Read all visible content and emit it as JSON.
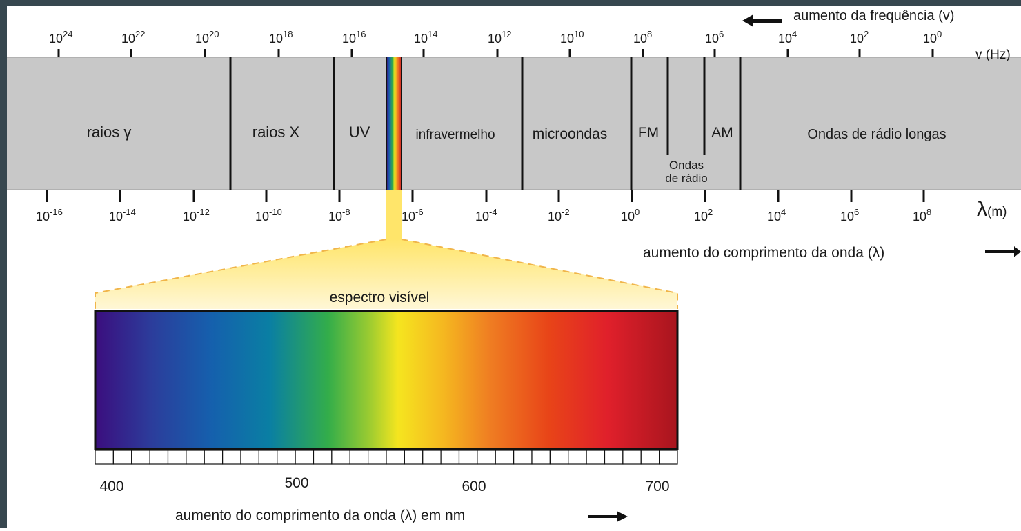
{
  "frequency_axis": {
    "direction_label": "aumento da frequência (v)",
    "unit_label": "v (Hz)",
    "base": "10",
    "exponents": [
      "24",
      "22",
      "20",
      "18",
      "16",
      "14",
      "12",
      "10",
      "8",
      "6",
      "4",
      "2",
      "0"
    ]
  },
  "wavelength_axis": {
    "direction_label": "aumento do comprimento da onda (λ)",
    "unit_symbol": "λ",
    "unit_suffix": "(m)",
    "base": "10",
    "exponents": [
      "-16",
      "-14",
      "-12",
      "-10",
      "-8",
      "-6",
      "-4",
      "-2",
      "0",
      "2",
      "4",
      "6",
      "8"
    ]
  },
  "bands": {
    "gamma": "raios γ",
    "xray": "raios X",
    "uv": "UV",
    "infrared": "infravermelho",
    "microwave": "microondas",
    "fm": "FM",
    "am": "AM",
    "radio_line1": "Ondas",
    "radio_line2": "de rádio",
    "long_radio": "Ondas de rádio longas"
  },
  "visible": {
    "title": "espectro visível",
    "tick_labels": [
      "400",
      "500",
      "600",
      "700"
    ],
    "axis_label": "aumento do comprimento da onda (λ) em nm"
  },
  "colors": {
    "frame": "#37474f",
    "band": "#c8c8c8",
    "highlight": "#fff2a8",
    "dash": "#f0b54a"
  }
}
